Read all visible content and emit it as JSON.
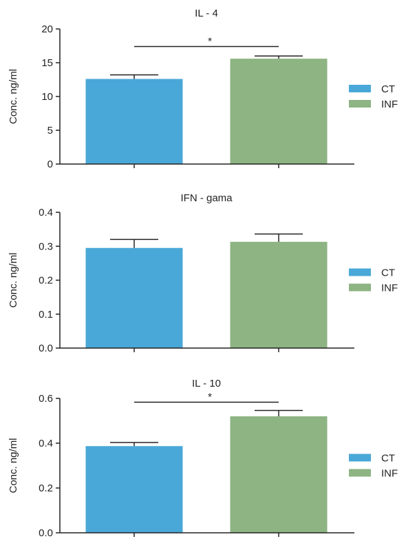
{
  "colors": {
    "ct": "#4aa8d8",
    "inf": "#8db482",
    "axis": "#222222"
  },
  "legend": {
    "items": [
      {
        "label": "CT",
        "color": "#4aa8d8"
      },
      {
        "label": "INF",
        "color": "#8db482"
      }
    ]
  },
  "chart_data": [
    {
      "type": "bar",
      "title": "IL - 4",
      "ylabel": "Conc. ng/ml",
      "xlabel": "",
      "ylim": [
        0,
        20
      ],
      "yticks": [
        0,
        5,
        10,
        15,
        20
      ],
      "ytick_labels": [
        "0",
        "5",
        "10",
        "15",
        "20"
      ],
      "categories": [
        "CT",
        "INF"
      ],
      "values": [
        12.6,
        15.6
      ],
      "errors": [
        0.6,
        0.4
      ],
      "significance": {
        "label": "*",
        "y": 17.4
      }
    },
    {
      "type": "bar",
      "title": "IFN - gama",
      "ylabel": "Conc. ng/ml",
      "xlabel": "",
      "ylim": [
        0,
        0.4
      ],
      "yticks": [
        0,
        0.1,
        0.2,
        0.3,
        0.4
      ],
      "ytick_labels": [
        "0.0",
        "0.1",
        "0.2",
        "0.3",
        "0.4"
      ],
      "categories": [
        "CT",
        "INF"
      ],
      "values": [
        0.295,
        0.313
      ],
      "errors": [
        0.025,
        0.023
      ],
      "significance": null
    },
    {
      "type": "bar",
      "title": "IL - 10",
      "ylabel": "Conc. ng/ml",
      "xlabel": "",
      "ylim": [
        0,
        0.6
      ],
      "yticks": [
        0,
        0.2,
        0.4,
        0.6
      ],
      "ytick_labels": [
        "0.0",
        "0.2",
        "0.4",
        "0.6"
      ],
      "categories": [
        "CT",
        "INF"
      ],
      "values": [
        0.387,
        0.52
      ],
      "errors": [
        0.016,
        0.026
      ],
      "significance": {
        "label": "*",
        "y": 0.583
      }
    }
  ]
}
